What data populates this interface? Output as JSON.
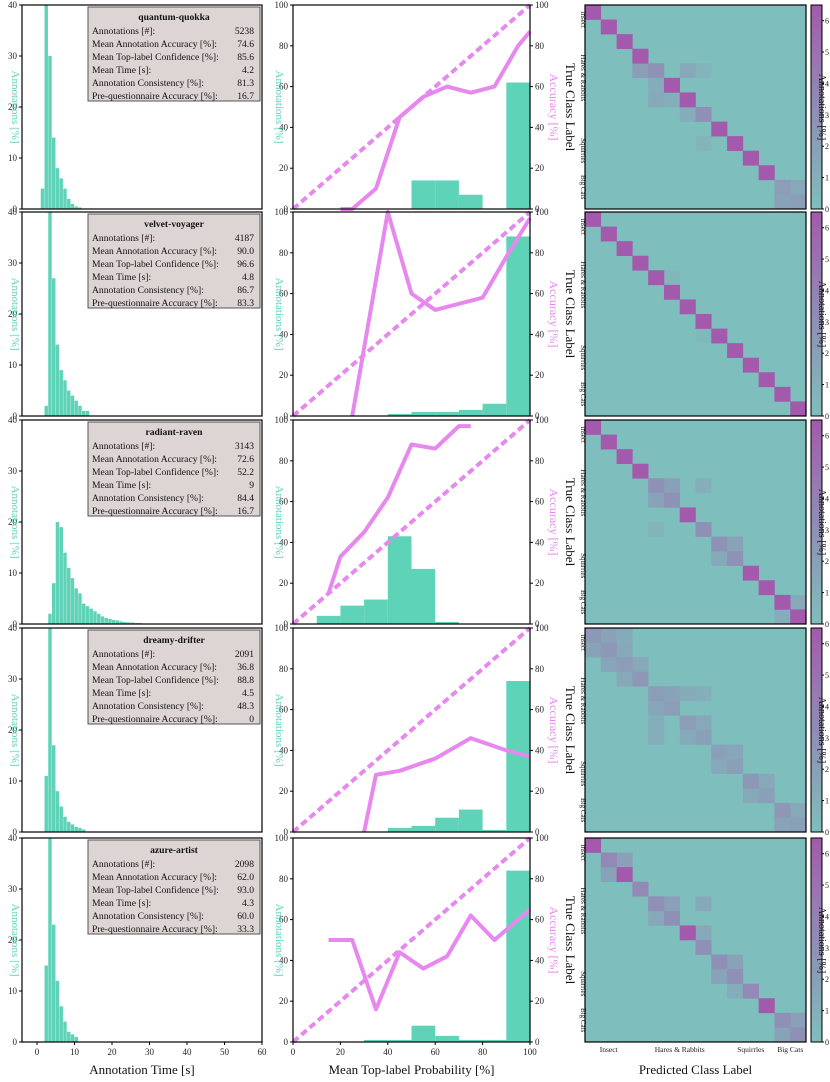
{
  "colors": {
    "teal": "#5fd3b8",
    "violet": "#e688ee",
    "box_fill": "#ddd5d3",
    "cm_low": "#7ebfbd",
    "cm_high": "#a35aac"
  },
  "axis_labels": {
    "time_xlabel": "Annotation Time [s]",
    "prob_xlabel": "Mean Top-label Probability [%]",
    "cm_xlabel": "Predicted Class Label",
    "annotations_ylabel": "Annotations [%]",
    "accuracy_ylabel": "Accuracy [%]",
    "cm_ylabel": "True Class Label",
    "cbar_label": "Annotations [%]"
  },
  "stat_labels": [
    "Annotations [#]:",
    "Mean Annotation Accuracy [%]:",
    "Mean Top-label Confidence [%]:",
    "Mean Time [s]:",
    "Annotation Consistency [%]:",
    "Pre-questionnaire Accuracy [%]:"
  ],
  "class_labels": [
    "Insect",
    "Hares & Rabbits",
    "Squirrles",
    "Big Cats"
  ],
  "chart_data": [
    {
      "type": "bar",
      "name": "quantum-quokka",
      "stats": [
        "5238",
        "74.6",
        "85.6",
        "4.2",
        "81.3",
        "16.7"
      ],
      "time_hist": {
        "bin_width": 1,
        "bin_start": 1,
        "values": [
          4,
          40,
          30,
          14,
          8,
          6,
          4,
          2,
          1,
          0.5,
          0.3
        ],
        "xlim": [
          -4,
          60
        ],
        "ylim": [
          0,
          40
        ],
        "y_ticks": [
          0,
          10,
          20,
          30,
          40
        ],
        "x_ticks": [
          0,
          10,
          20,
          30,
          40,
          50,
          60
        ]
      },
      "calibration": {
        "hist_x": [
          45,
          55,
          65,
          75,
          85,
          95
        ],
        "hist_values": [
          0,
          14,
          14,
          7,
          0,
          62
        ],
        "accuracy_x": [
          20,
          25,
          35,
          45,
          55,
          65,
          75,
          85,
          95,
          100
        ],
        "accuracy_values": [
          0,
          0,
          10,
          45,
          55,
          60,
          57,
          60,
          80,
          87
        ],
        "xlim": [
          0,
          100
        ],
        "ylim": [
          0,
          100
        ],
        "ticks": [
          0,
          20,
          40,
          60,
          80,
          100
        ]
      },
      "confusion": {
        "classes": 14,
        "diag": [
          6.5,
          6.5,
          6.5,
          6.5,
          2.8,
          6.5,
          6.5,
          3.0,
          6.5,
          6.5,
          6.5,
          6.5,
          2.2,
          2.2
        ],
        "off": [
          [
            4,
            3,
            2.2
          ],
          [
            5,
            4,
            1.2
          ],
          [
            4,
            6,
            1.5
          ],
          [
            6,
            5,
            1.0
          ],
          [
            6,
            4,
            1.5
          ],
          [
            4,
            7,
            0.8
          ],
          [
            7,
            6,
            1.2
          ],
          [
            13,
            12,
            1.8
          ],
          [
            12,
            13,
            1.5
          ],
          [
            9,
            7,
            0.8
          ]
        ],
        "max": 6.5,
        "cbar_ticks": [
          0,
          1,
          2,
          3,
          4,
          5,
          6
        ]
      }
    },
    {
      "type": "bar",
      "name": "velvet-voyager",
      "stats": [
        "4187",
        "90.0",
        "96.6",
        "4.8",
        "86.7",
        "83.3"
      ],
      "time_hist": {
        "bin_width": 1,
        "bin_start": 2,
        "values": [
          2,
          40,
          27,
          14,
          9,
          7,
          5,
          4,
          3,
          2,
          1,
          1
        ],
        "xlim": [
          -4,
          60
        ],
        "ylim": [
          0,
          40
        ],
        "y_ticks": [
          0,
          10,
          20,
          30,
          40
        ],
        "x_ticks": [
          0,
          10,
          20,
          30,
          40,
          50,
          60
        ]
      },
      "calibration": {
        "hist_x": [
          45,
          55,
          65,
          75,
          85,
          95
        ],
        "hist_values": [
          1,
          2,
          2,
          3,
          6,
          88
        ],
        "accuracy_x": [
          25,
          40,
          50,
          60,
          70,
          80,
          90,
          100
        ],
        "accuracy_values": [
          0,
          100,
          60,
          52,
          55,
          58,
          78,
          97
        ],
        "xlim": [
          0,
          100
        ],
        "ylim": [
          0,
          100
        ],
        "ticks": [
          0,
          20,
          40,
          60,
          80,
          100
        ]
      },
      "confusion": {
        "classes": 14,
        "diag": [
          6.5,
          6.5,
          6.5,
          6.5,
          6.5,
          6.5,
          6.5,
          6.5,
          6.5,
          6.5,
          6.5,
          6.5,
          6.5,
          6.5
        ],
        "off": [
          [
            4,
            5,
            0.6
          ],
          [
            8,
            7,
            0.4
          ]
        ],
        "max": 6.5,
        "cbar_ticks": [
          0,
          1,
          2,
          3,
          4,
          5,
          6
        ]
      }
    },
    {
      "type": "bar",
      "name": "radiant-raven",
      "stats": [
        "3143",
        "72.6",
        "52.2",
        "9",
        "84.4",
        "16.7"
      ],
      "time_hist": {
        "bin_width": 1,
        "bin_start": 3,
        "values": [
          2,
          8,
          20,
          19,
          14,
          11,
          9,
          7,
          6,
          4,
          3.5,
          3,
          2.5,
          2,
          1.5,
          1.2,
          1,
          0.8,
          0.7,
          0.5,
          0.4,
          0.3,
          0.3,
          0.2,
          0.2
        ],
        "xlim": [
          -4,
          60
        ],
        "ylim": [
          0,
          40
        ],
        "y_ticks": [
          0,
          10,
          20,
          30,
          40
        ],
        "x_ticks": [
          0,
          10,
          20,
          30,
          40,
          50,
          60
        ]
      },
      "calibration": {
        "hist_x": [
          15,
          25,
          35,
          45,
          55,
          65
        ],
        "hist_values": [
          4,
          9,
          12,
          43,
          27,
          1
        ],
        "accuracy_x": [
          15,
          20,
          30,
          40,
          50,
          60,
          70,
          75
        ],
        "accuracy_values": [
          15,
          33,
          45,
          62,
          88,
          86,
          97,
          97
        ],
        "xlim": [
          0,
          100
        ],
        "ylim": [
          0,
          100
        ],
        "ticks": [
          0,
          20,
          40,
          60,
          80,
          100
        ]
      },
      "confusion": {
        "classes": 14,
        "diag": [
          6.5,
          6.5,
          6.5,
          6.5,
          3.0,
          2.8,
          6.5,
          3.0,
          2.8,
          2.8,
          6.5,
          6.5,
          6.5,
          6.5
        ],
        "off": [
          [
            4,
            5,
            2.0
          ],
          [
            5,
            4,
            1.8
          ],
          [
            4,
            7,
            1.0
          ],
          [
            7,
            4,
            0.8
          ],
          [
            8,
            9,
            1.8
          ],
          [
            9,
            8,
            1.4
          ],
          [
            12,
            13,
            1.5
          ],
          [
            13,
            12,
            1.2
          ]
        ],
        "max": 6.5,
        "cbar_ticks": [
          0,
          1,
          2,
          3,
          4,
          5,
          6
        ]
      }
    },
    {
      "type": "bar",
      "name": "dreamy-drifter",
      "stats": [
        "2091",
        "36.8",
        "88.8",
        "4.5",
        "48.3",
        "0"
      ],
      "time_hist": {
        "bin_width": 1,
        "bin_start": 2,
        "values": [
          11,
          40,
          17,
          8,
          5,
          3,
          2,
          1.5,
          1,
          0.8,
          0.5
        ],
        "xlim": [
          -4,
          60
        ],
        "ylim": [
          0,
          40
        ],
        "y_ticks": [
          0,
          10,
          20,
          30,
          40
        ],
        "x_ticks": [
          0,
          10,
          20,
          30,
          40,
          50,
          60
        ]
      },
      "calibration": {
        "hist_x": [
          45,
          55,
          65,
          75,
          85,
          95
        ],
        "hist_values": [
          2,
          3,
          7,
          11,
          1,
          74
        ],
        "accuracy_x": [
          30,
          35,
          45,
          60,
          75,
          90,
          100
        ],
        "accuracy_values": [
          0,
          28,
          30,
          36,
          46,
          40,
          37
        ],
        "xlim": [
          0,
          100
        ],
        "ylim": [
          0,
          100
        ],
        "ticks": [
          0,
          20,
          40,
          60,
          80,
          100
        ]
      },
      "confusion": {
        "classes": 14,
        "diag": [
          2.5,
          2.5,
          2.2,
          2.5,
          2.2,
          2.2,
          2.2,
          2.0,
          2.0,
          2.0,
          2.5,
          2.0,
          2.5,
          2.0
        ],
        "off": [
          [
            0,
            1,
            1.8
          ],
          [
            1,
            0,
            1.8
          ],
          [
            1,
            2,
            1.5
          ],
          [
            2,
            1,
            1.6
          ],
          [
            0,
            2,
            1.3
          ],
          [
            2,
            3,
            1.5
          ],
          [
            3,
            2,
            1.5
          ],
          [
            4,
            5,
            1.8
          ],
          [
            5,
            4,
            1.6
          ],
          [
            6,
            7,
            1.5
          ],
          [
            7,
            6,
            1.3
          ],
          [
            4,
            6,
            1.3
          ],
          [
            6,
            4,
            1.0
          ],
          [
            8,
            9,
            1.6
          ],
          [
            9,
            8,
            1.5
          ],
          [
            10,
            11,
            1.5
          ],
          [
            11,
            10,
            1.4
          ],
          [
            12,
            13,
            1.5
          ],
          [
            13,
            12,
            1.8
          ],
          [
            4,
            7,
            1.0
          ],
          [
            7,
            4,
            1.0
          ]
        ],
        "max": 6.5,
        "cbar_ticks": [
          0,
          1,
          2,
          3,
          4,
          5,
          6
        ]
      }
    },
    {
      "type": "bar",
      "name": "azure-artist",
      "stats": [
        "2098",
        "62.0",
        "93.0",
        "4.3",
        "60.0",
        "33.3"
      ],
      "time_hist": {
        "bin_width": 1,
        "bin_start": 2,
        "values": [
          15,
          40,
          23,
          12,
          7,
          4,
          2,
          1.5,
          1
        ],
        "xlim": [
          -4,
          60
        ],
        "ylim": [
          0,
          40
        ],
        "y_ticks": [
          0,
          10,
          20,
          30,
          40
        ],
        "x_ticks": [
          0,
          10,
          20,
          30,
          40,
          50,
          60
        ]
      },
      "calibration": {
        "hist_x": [
          35,
          45,
          55,
          65,
          75,
          85,
          95
        ],
        "hist_values": [
          1,
          1,
          8,
          3,
          1,
          1,
          84
        ],
        "accuracy_x": [
          15,
          20,
          25,
          35,
          45,
          55,
          65,
          75,
          85,
          95,
          100
        ],
        "accuracy_values": [
          50,
          50,
          50,
          16,
          44,
          36,
          42,
          62,
          50,
          60,
          65
        ],
        "xlim": [
          0,
          100
        ],
        "ylim": [
          0,
          100
        ],
        "ticks": [
          0,
          20,
          40,
          60,
          80,
          100
        ]
      },
      "confusion": {
        "classes": 14,
        "diag": [
          6.5,
          3.5,
          6.5,
          3.5,
          3.0,
          3.0,
          6.5,
          3.0,
          3.0,
          3.0,
          3.5,
          6.5,
          3.0,
          3.0
        ],
        "off": [
          [
            1,
            2,
            2.0
          ],
          [
            2,
            1,
            1.8
          ],
          [
            4,
            5,
            2.0
          ],
          [
            5,
            4,
            1.5
          ],
          [
            6,
            7,
            1.5
          ],
          [
            4,
            7,
            1.4
          ],
          [
            8,
            9,
            1.8
          ],
          [
            9,
            8,
            1.8
          ],
          [
            12,
            13,
            2.0
          ],
          [
            13,
            12,
            1.8
          ],
          [
            10,
            9,
            1.2
          ]
        ],
        "max": 6.5,
        "cbar_ticks": [
          0,
          1,
          2,
          3,
          4,
          5,
          6
        ]
      }
    }
  ]
}
